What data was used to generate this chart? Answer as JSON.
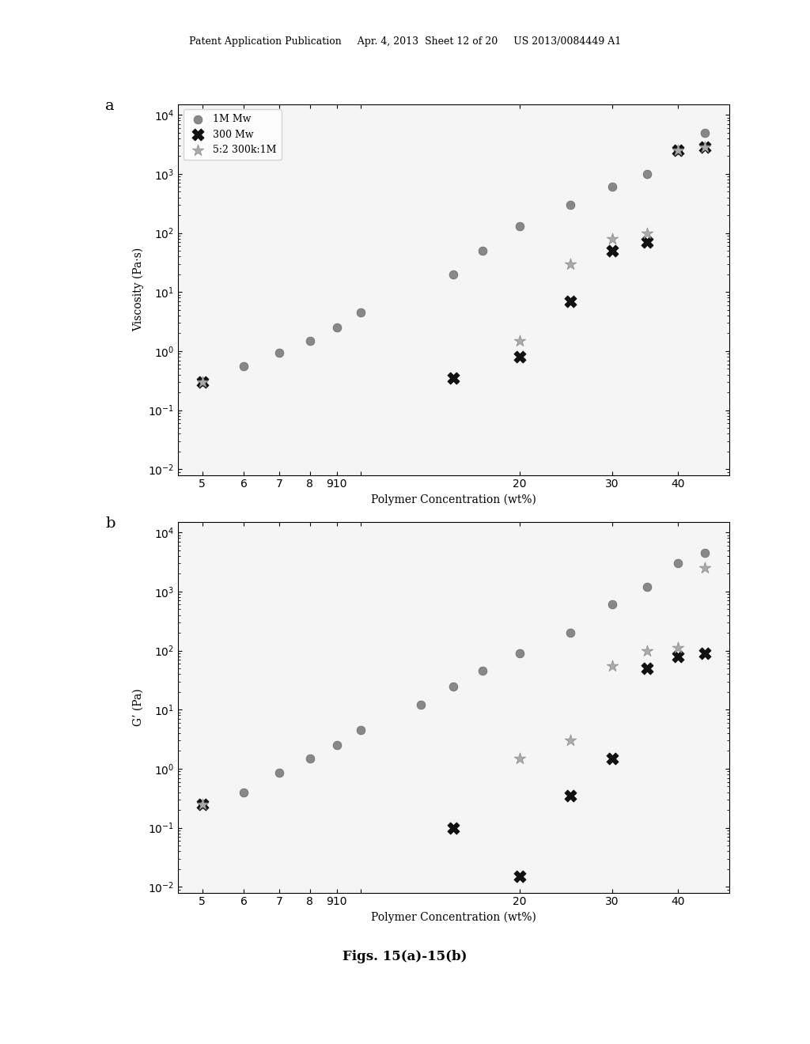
{
  "title_a": "a",
  "title_b": "b",
  "xlabel": "Polymer Concentration (wt%)",
  "ylabel_a": "Viscosity (Pa·s)",
  "ylabel_b": "G’ (Pa)",
  "fig_caption": "Figs. 15(a)-15(b)",
  "header_text": "Patent Application Publication     Apr. 4, 2013  Sheet 12 of 20     US 2013/0084449 A1",
  "series_1M_color": "#888888",
  "series_300k_color": "#111111",
  "series_mix_color": "#aaaaaa",
  "viscosity_1M_x": [
    5,
    6,
    7,
    8,
    9,
    10,
    15,
    17,
    20,
    25,
    30,
    35,
    40,
    45
  ],
  "viscosity_1M_y": [
    0.3,
    0.55,
    0.95,
    1.5,
    2.5,
    4.5,
    20,
    50,
    130,
    300,
    600,
    1000,
    2500,
    5000
  ],
  "viscosity_300k_x": [
    5,
    15,
    20,
    25,
    30,
    35,
    40,
    45
  ],
  "viscosity_300k_y": [
    0.3,
    0.35,
    0.8,
    7.0,
    50,
    70,
    2500,
    2800
  ],
  "viscosity_mix_x": [
    5,
    20,
    25,
    30,
    35,
    40,
    45
  ],
  "viscosity_mix_y": [
    0.3,
    1.5,
    30,
    80,
    100,
    2500,
    2800
  ],
  "gp_1M_x": [
    5,
    6,
    7,
    8,
    9,
    10,
    13,
    15,
    17,
    20,
    25,
    30,
    35,
    40,
    45
  ],
  "gp_1M_y": [
    0.25,
    0.4,
    0.85,
    1.5,
    2.5,
    4.5,
    12,
    25,
    45,
    90,
    200,
    600,
    1200,
    3000,
    4500
  ],
  "gp_300k_x": [
    5,
    15,
    20,
    25,
    30,
    35,
    40,
    45
  ],
  "gp_300k_y": [
    0.25,
    0.1,
    0.015,
    0.35,
    1.5,
    50,
    80,
    90
  ],
  "gp_mix_x": [
    5,
    20,
    25,
    30,
    35,
    40,
    45
  ],
  "gp_mix_y": [
    0.25,
    1.5,
    3.0,
    55,
    100,
    110,
    2500
  ],
  "legend_labels": [
    "1M Mw",
    "300 Mw",
    "5:2 300k:1M"
  ],
  "background_color": "#ffffff"
}
